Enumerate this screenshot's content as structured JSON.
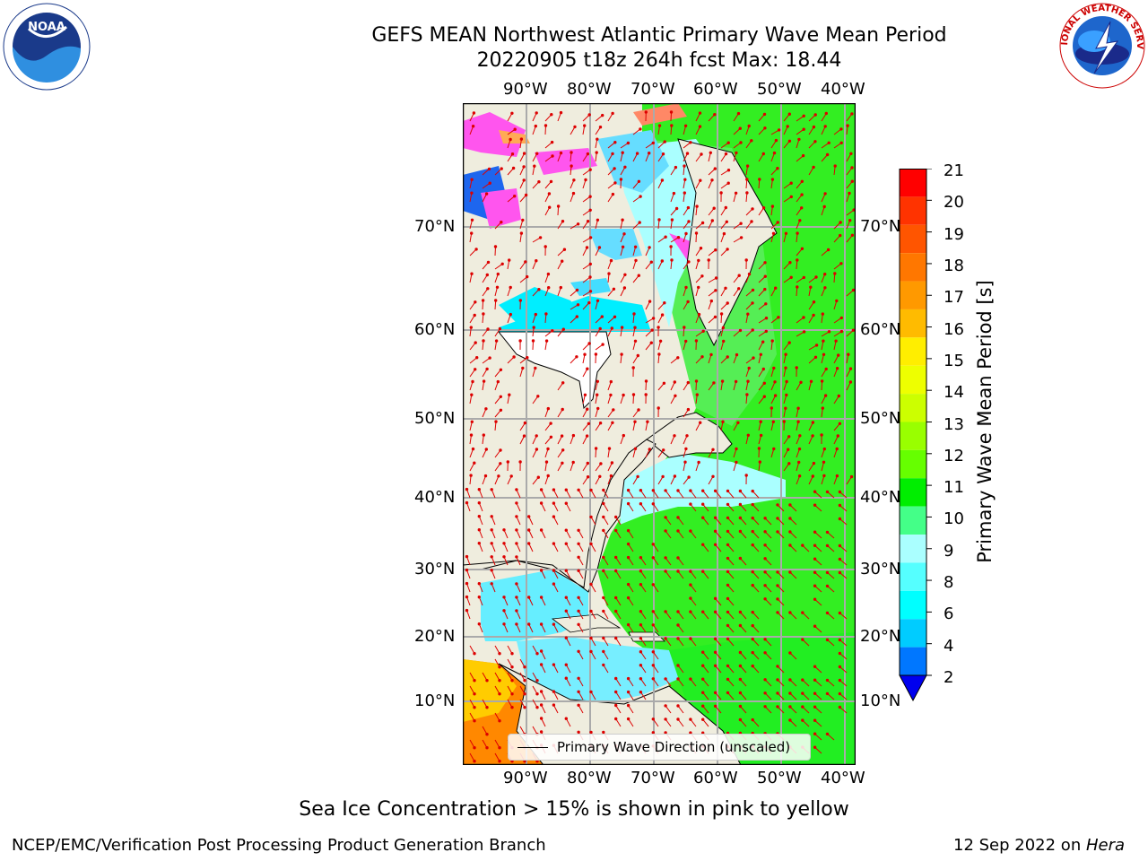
{
  "header": {
    "title_line1": "GEFS MEAN Northwest Atlantic Primary Wave Mean Period",
    "title_line2": "20220905 t18z 264h fcst   Max: 18.44"
  },
  "logos": {
    "noaa_text": "NOAA",
    "noaa_ring_text": "NATIONAL OCEANIC AND ATMOSPHERIC ADMINISTRATION · U.S. DEPARTMENT OF COMMERCE",
    "nws_ring_text": "NATIONAL WEATHER SERVICE"
  },
  "map": {
    "lon_labels": [
      "90°W",
      "80°W",
      "70°W",
      "60°W",
      "50°W",
      "40°W"
    ],
    "lat_labels": [
      "70°N",
      "60°N",
      "50°N",
      "40°N",
      "30°N",
      "20°N",
      "10°N"
    ],
    "legend_label": "Primary Wave Direction (unscaled)",
    "colors": {
      "land": "#efedde",
      "ocean_low": "#66ffff",
      "ocean_mid": "#33ff33",
      "ocean_high": "#ff9900",
      "sea_ice": "#ff44ee",
      "arrows": "#dd0000",
      "grid": "#aaaaaa"
    }
  },
  "colorbar": {
    "label": "Primary Wave Mean Period [s]",
    "ticks": [
      "21",
      "20",
      "19",
      "18",
      "17",
      "16",
      "15",
      "14",
      "13",
      "12",
      "11",
      "10",
      "9",
      "8",
      "6",
      "4",
      "2"
    ],
    "colors": [
      "#ff0000",
      "#ff3300",
      "#ff5500",
      "#ff7700",
      "#ff9900",
      "#ffbb00",
      "#ffee00",
      "#eeff00",
      "#ccff00",
      "#99ff00",
      "#66ff00",
      "#00ee00",
      "#44ff88",
      "#aaffff",
      "#55ffff",
      "#00ffff",
      "#00ccff",
      "#0077ff"
    ],
    "extend_color": "#0000ee"
  },
  "notes": {
    "sea_ice": "Sea Ice Concentration > 15% is shown in pink to yellow"
  },
  "footer": {
    "left": "NCEP/EMC/Verification Post Processing Product Generation Branch",
    "right_date": "12 Sep 2022 on",
    "right_host": "Hera"
  }
}
